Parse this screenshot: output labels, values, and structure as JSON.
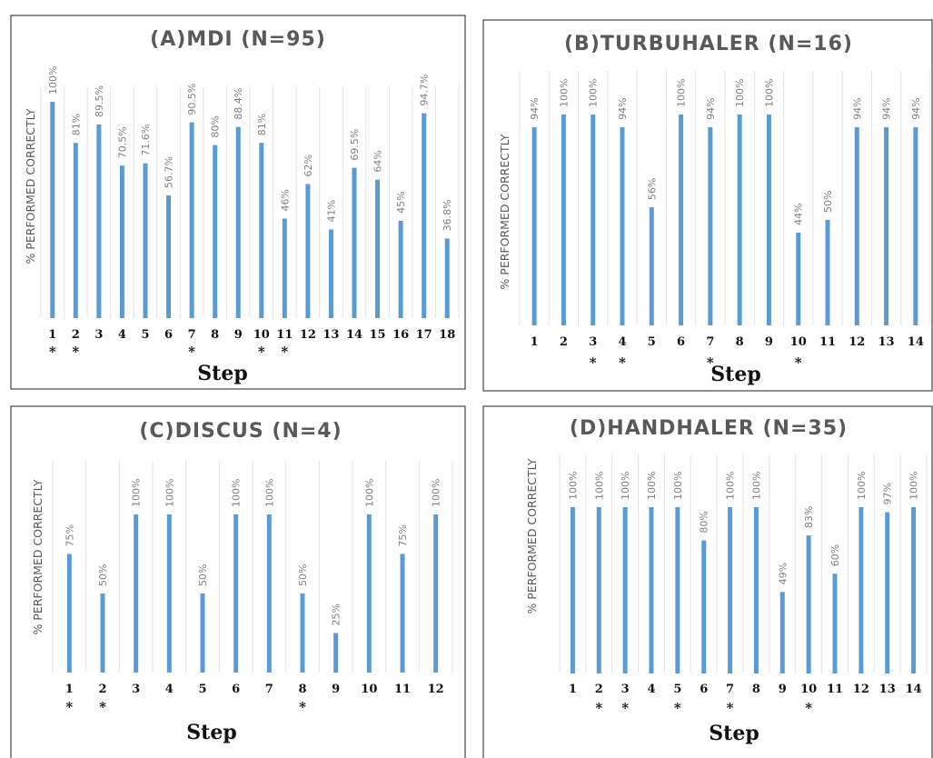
{
  "colors": {
    "bar": "#5b9bd5",
    "title": "#595959",
    "label": "#7f7f7f"
  },
  "chart_data": [
    {
      "type": "bar",
      "title": "(A)MDI (N=95)",
      "ylabel": "% PERFORMED CORRECTLY",
      "xlabel": "Step",
      "ylim": [
        0,
        100
      ],
      "categories": [
        "1",
        "2",
        "3",
        "4",
        "5",
        "6",
        "7",
        "8",
        "9",
        "10",
        "11",
        "12",
        "13",
        "14",
        "15",
        "16",
        "17",
        "18"
      ],
      "values": [
        100,
        81,
        89.5,
        70.5,
        71.6,
        56.7,
        90.5,
        80,
        88.4,
        81,
        46,
        62,
        41,
        69.5,
        64,
        45,
        94.7,
        36.8
      ],
      "value_labels": [
        "100%",
        "81%",
        "89.5%",
        "70.5%",
        "71.6%",
        "56.7%",
        "90.5%",
        "80%",
        "88.4%",
        "81%",
        "46%",
        "62%",
        "41%",
        "69.5%",
        "64%",
        "45%",
        "94.7%",
        "36.8%"
      ],
      "starred": [
        "1",
        "2",
        "7",
        "10",
        "11"
      ]
    },
    {
      "type": "bar",
      "title": "(B)TURBUHALER (N=16)",
      "ylabel": "% PERFORMED CORRECTLY",
      "xlabel": "Step",
      "ylim": [
        0,
        100
      ],
      "categories": [
        "1",
        "2",
        "3",
        "4",
        "5",
        "6",
        "7",
        "8",
        "9",
        "10",
        "11",
        "12",
        "13",
        "14"
      ],
      "values": [
        94,
        100,
        100,
        94,
        56,
        100,
        94,
        100,
        100,
        44,
        50,
        94,
        94,
        94
      ],
      "value_labels": [
        "94%",
        "100%",
        "100%",
        "94%",
        "56%",
        "100%",
        "94%",
        "100%",
        "100%",
        "44%",
        "50%",
        "94%",
        "94%",
        "94%"
      ],
      "starred": [
        "3",
        "4",
        "7",
        "10"
      ]
    },
    {
      "type": "bar",
      "title": "(C)DISCUS (N=4)",
      "ylabel": "% PERFORMED CORRECTLY",
      "xlabel": "Step",
      "ylim": [
        0,
        100
      ],
      "categories": [
        "1",
        "2",
        "3",
        "4",
        "5",
        "6",
        "7",
        "8",
        "9",
        "10",
        "11",
        "12"
      ],
      "values": [
        75,
        50,
        100,
        100,
        50,
        100,
        100,
        50,
        25,
        100,
        75,
        100
      ],
      "value_labels": [
        "75%",
        "50%",
        "100%",
        "100%",
        "50%",
        "100%",
        "100%",
        "50%",
        "25%",
        "100%",
        "75%",
        "100%"
      ],
      "starred": [
        "1",
        "2",
        "8"
      ]
    },
    {
      "type": "bar",
      "title": "(D)HANDHALER (N=35)",
      "ylabel": "% PERFORMED CORRECTLY",
      "xlabel": "Step",
      "ylim": [
        0,
        100
      ],
      "categories": [
        "1",
        "2",
        "3",
        "4",
        "5",
        "6",
        "7",
        "8",
        "9",
        "10",
        "11",
        "12",
        "13",
        "14"
      ],
      "values": [
        100,
        100,
        100,
        100,
        100,
        80,
        100,
        100,
        49,
        83,
        60,
        100,
        97,
        100
      ],
      "value_labels": [
        "100%",
        "100%",
        "100%",
        "100%",
        "100%",
        "80%",
        "100%",
        "100%",
        "49%",
        "83%",
        "60%",
        "100%",
        "97%",
        "100%"
      ],
      "starred": [
        "2",
        "3",
        "5",
        "7",
        "10"
      ]
    }
  ]
}
